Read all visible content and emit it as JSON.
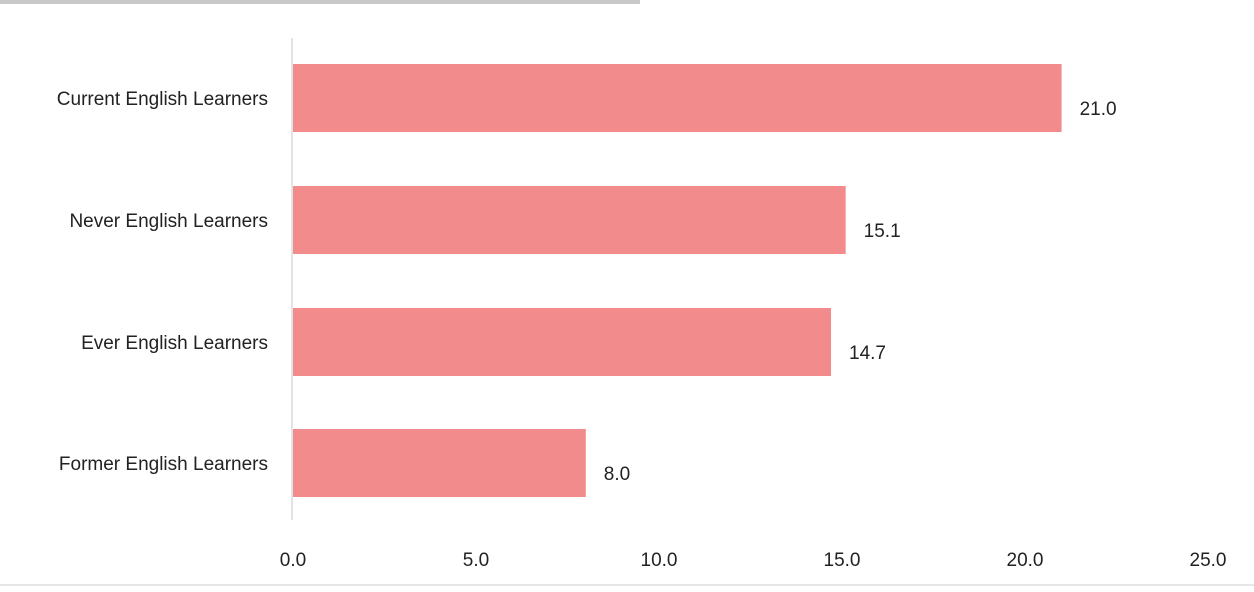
{
  "chart_data": {
    "type": "bar",
    "orientation": "horizontal",
    "title": "",
    "xlabel": "",
    "ylabel": "",
    "categories": [
      "Current English Learners",
      "Never English Learners",
      "Ever English Learners",
      "Former English Learners"
    ],
    "values": [
      21.0,
      15.1,
      14.7,
      8.0
    ],
    "value_labels": [
      "21.0",
      "15.1",
      "14.7",
      "8.0"
    ],
    "xlim": [
      0,
      25
    ],
    "x_ticks": [
      0,
      5,
      10,
      15,
      20,
      25
    ],
    "x_tick_labels": [
      "0.0",
      "5.0",
      "10.0",
      "15.0",
      "20.0",
      "25.0"
    ],
    "bar_color": "#f28b8b",
    "grid": false,
    "legend": "none"
  }
}
